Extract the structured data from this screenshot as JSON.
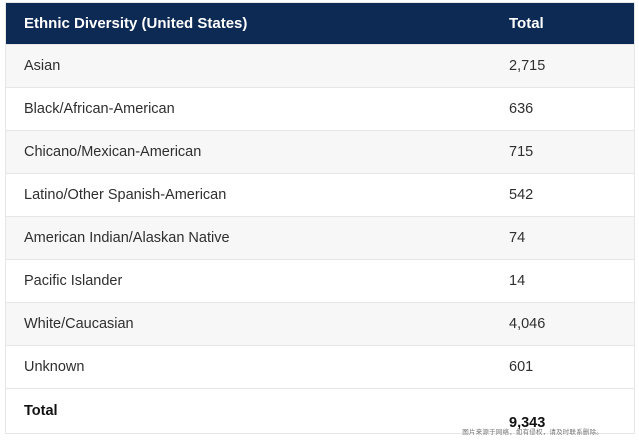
{
  "table": {
    "headers": [
      "Ethnic Diversity (United States)",
      "Total"
    ],
    "rows": [
      {
        "label": "Asian",
        "value": "2,715"
      },
      {
        "label": "Black/African-American",
        "value": "636"
      },
      {
        "label": "Chicano/Mexican-American",
        "value": "715"
      },
      {
        "label": "Latino/Other Spanish-American",
        "value": "542"
      },
      {
        "label": "American Indian/Alaskan Native",
        "value": "74"
      },
      {
        "label": "Pacific Islander",
        "value": "14"
      },
      {
        "label": "White/Caucasian",
        "value": "4,046"
      },
      {
        "label": "Unknown",
        "value": "601"
      }
    ],
    "total": {
      "label": "Total",
      "value": "9,343"
    }
  },
  "watermark": "图片来源于网络，如有侵权，请及时联系删除。",
  "colors": {
    "header_bg": "#0d2a55",
    "header_text": "#ffffff",
    "stripe": "#f7f7f7"
  }
}
